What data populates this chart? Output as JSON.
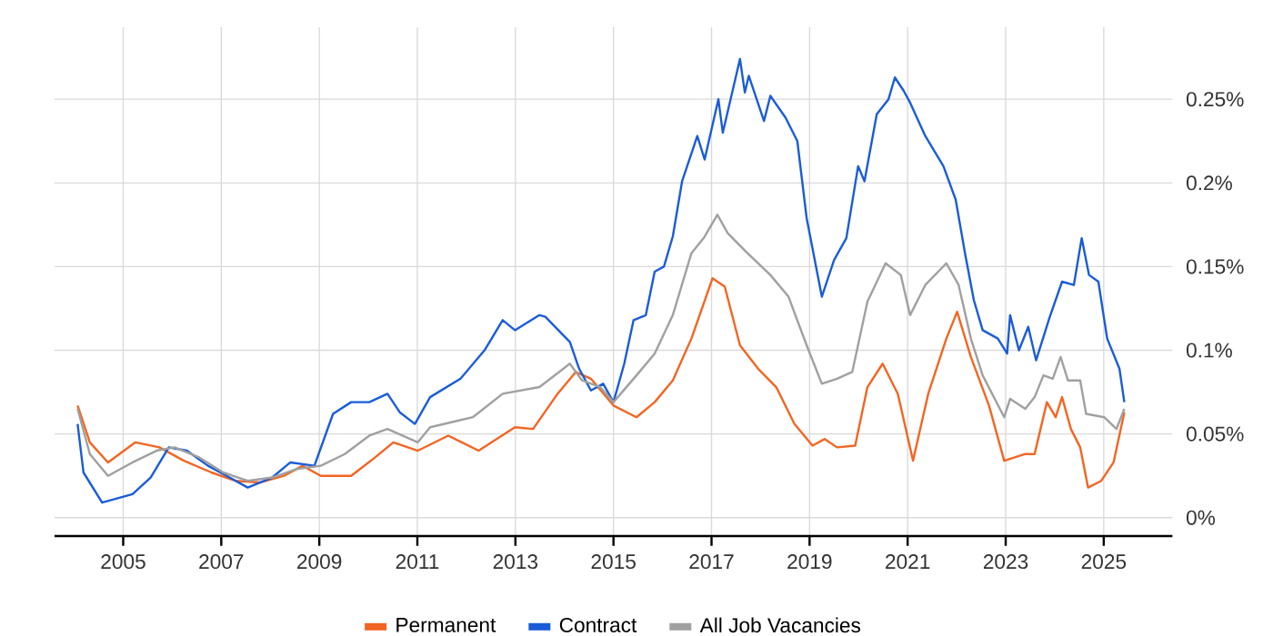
{
  "chart_data": {
    "type": "line",
    "xlim": [
      2003.6,
      2026.4
    ],
    "ylim": [
      -0.011,
      0.293
    ],
    "xticks": [
      2005,
      2007,
      2009,
      2011,
      2013,
      2015,
      2017,
      2019,
      2021,
      2023,
      2025
    ],
    "yticks": [
      {
        "value": 0,
        "label": "0%"
      },
      {
        "value": 0.05,
        "label": "0.05%"
      },
      {
        "value": 0.1,
        "label": "0.1%"
      },
      {
        "value": 0.15,
        "label": "0.15%"
      },
      {
        "value": 0.2,
        "label": "0.2%"
      },
      {
        "value": 0.25,
        "label": "0.25%"
      }
    ],
    "grid": true,
    "legend": "bottom",
    "marker": "none",
    "line_style": "solid",
    "series": [
      {
        "name": "Permanent",
        "color": "#f26522",
        "x": [
          2004.07,
          2004.32,
          2004.69,
          2005.25,
          2005.74,
          2006.24,
          2006.8,
          2007.29,
          2007.79,
          2008.28,
          2008.66,
          2009.03,
          2009.65,
          2010.14,
          2010.51,
          2011.01,
          2011.63,
          2012.25,
          2012.99,
          2013.36,
          2013.86,
          2014.23,
          2014.54,
          2015.0,
          2015.47,
          2015.84,
          2016.21,
          2016.59,
          2017.02,
          2017.27,
          2017.58,
          2017.95,
          2018.32,
          2018.69,
          2019.06,
          2019.31,
          2019.56,
          2019.93,
          2020.18,
          2020.49,
          2020.8,
          2021.11,
          2021.42,
          2021.79,
          2022.01,
          2022.29,
          2022.66,
          2022.97,
          2023.4,
          2023.59,
          2023.84,
          2024.02,
          2024.15,
          2024.33,
          2024.52,
          2024.68,
          2024.95,
          2025.2,
          2025.42
        ],
        "values": [
          0.067,
          0.045,
          0.033,
          0.045,
          0.042,
          0.034,
          0.027,
          0.022,
          0.021,
          0.025,
          0.031,
          0.025,
          0.025,
          0.036,
          0.045,
          0.04,
          0.049,
          0.04,
          0.054,
          0.053,
          0.074,
          0.087,
          0.083,
          0.067,
          0.06,
          0.069,
          0.082,
          0.107,
          0.143,
          0.138,
          0.103,
          0.089,
          0.078,
          0.056,
          0.043,
          0.047,
          0.042,
          0.043,
          0.078,
          0.092,
          0.074,
          0.034,
          0.074,
          0.107,
          0.123,
          0.096,
          0.067,
          0.034,
          0.038,
          0.038,
          0.069,
          0.06,
          0.072,
          0.053,
          0.042,
          0.018,
          0.022,
          0.033,
          0.063
        ]
      },
      {
        "name": "Contract",
        "color": "#1a5cd8",
        "x": [
          2004.07,
          2004.19,
          2004.57,
          2005.19,
          2005.56,
          2005.93,
          2006.3,
          2006.73,
          2007.17,
          2007.54,
          2008.04,
          2008.41,
          2008.9,
          2009.28,
          2009.65,
          2010.02,
          2010.39,
          2010.64,
          2010.95,
          2011.26,
          2011.88,
          2012.37,
          2012.74,
          2012.99,
          2013.49,
          2013.61,
          2014.11,
          2014.3,
          2014.54,
          2014.79,
          2015.0,
          2015.22,
          2015.41,
          2015.66,
          2015.84,
          2016.03,
          2016.21,
          2016.4,
          2016.71,
          2016.86,
          2017.14,
          2017.23,
          2017.58,
          2017.68,
          2017.76,
          2018.07,
          2018.2,
          2018.51,
          2018.75,
          2018.94,
          2019.25,
          2019.5,
          2019.75,
          2019.99,
          2020.12,
          2020.37,
          2020.61,
          2020.74,
          2020.92,
          2021.05,
          2021.36,
          2021.73,
          2021.98,
          2022.17,
          2022.35,
          2022.53,
          2022.84,
          2023.03,
          2023.09,
          2023.27,
          2023.46,
          2023.62,
          2023.9,
          2024.15,
          2024.39,
          2024.55,
          2024.7,
          2024.89,
          2025.07,
          2025.32,
          2025.42
        ],
        "values": [
          0.056,
          0.027,
          0.009,
          0.014,
          0.024,
          0.042,
          0.04,
          0.031,
          0.024,
          0.018,
          0.024,
          0.033,
          0.031,
          0.062,
          0.069,
          0.069,
          0.074,
          0.063,
          0.056,
          0.072,
          0.083,
          0.1,
          0.118,
          0.112,
          0.121,
          0.12,
          0.105,
          0.089,
          0.076,
          0.08,
          0.069,
          0.092,
          0.118,
          0.121,
          0.147,
          0.15,
          0.168,
          0.201,
          0.228,
          0.214,
          0.25,
          0.23,
          0.274,
          0.254,
          0.264,
          0.237,
          0.252,
          0.239,
          0.225,
          0.179,
          0.132,
          0.154,
          0.167,
          0.21,
          0.201,
          0.241,
          0.25,
          0.263,
          0.255,
          0.248,
          0.228,
          0.21,
          0.19,
          0.158,
          0.13,
          0.112,
          0.107,
          0.098,
          0.121,
          0.1,
          0.114,
          0.094,
          0.12,
          0.141,
          0.139,
          0.167,
          0.145,
          0.141,
          0.107,
          0.089,
          0.069
        ]
      },
      {
        "name": "All Job Vacancies",
        "color": "#a0a0a0",
        "x": [
          2004.07,
          2004.32,
          2004.69,
          2005.19,
          2005.68,
          2006.05,
          2006.55,
          2007.04,
          2007.54,
          2008.04,
          2008.53,
          2009.03,
          2009.52,
          2010.02,
          2010.39,
          2011.01,
          2011.26,
          2012.13,
          2012.74,
          2013.49,
          2013.98,
          2014.11,
          2014.36,
          2014.73,
          2015.0,
          2015.47,
          2015.84,
          2016.21,
          2016.59,
          2016.84,
          2017.12,
          2017.33,
          2017.7,
          2018.2,
          2018.57,
          2018.94,
          2019.25,
          2019.56,
          2019.87,
          2020.18,
          2020.55,
          2020.86,
          2021.05,
          2021.36,
          2021.79,
          2022.04,
          2022.29,
          2022.53,
          2022.97,
          2023.09,
          2023.4,
          2023.59,
          2023.77,
          2023.96,
          2024.12,
          2024.27,
          2024.52,
          2024.64,
          2025.01,
          2025.26,
          2025.42
        ],
        "values": [
          0.065,
          0.038,
          0.025,
          0.033,
          0.04,
          0.042,
          0.036,
          0.027,
          0.022,
          0.024,
          0.029,
          0.031,
          0.038,
          0.049,
          0.053,
          0.045,
          0.054,
          0.06,
          0.074,
          0.078,
          0.089,
          0.092,
          0.082,
          0.078,
          0.069,
          0.085,
          0.098,
          0.121,
          0.158,
          0.167,
          0.181,
          0.17,
          0.159,
          0.145,
          0.132,
          0.103,
          0.08,
          0.083,
          0.087,
          0.129,
          0.152,
          0.145,
          0.121,
          0.139,
          0.152,
          0.139,
          0.107,
          0.085,
          0.06,
          0.071,
          0.065,
          0.072,
          0.085,
          0.083,
          0.096,
          0.082,
          0.082,
          0.062,
          0.06,
          0.053,
          0.065
        ]
      }
    ]
  }
}
